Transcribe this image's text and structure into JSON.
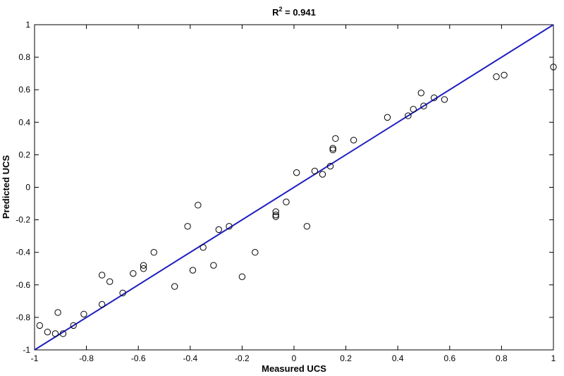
{
  "chart_data": {
    "type": "scatter",
    "title": "R² = 0.941",
    "title_main": "R",
    "title_sup": "2",
    "title_rest": " = 0.941",
    "xlabel": "Measured UCS",
    "ylabel": "Predicted UCS",
    "xlim": [
      -1,
      1
    ],
    "ylim": [
      -1,
      1
    ],
    "x_ticks": [
      -1,
      -0.8,
      -0.6,
      -0.4,
      -0.2,
      0,
      0.2,
      0.4,
      0.6,
      0.8,
      1
    ],
    "x_tick_labels": [
      "-1",
      "-0.8",
      "-0.6",
      "-0.4",
      "-0.2",
      "0",
      "0.2",
      "0.4",
      "0.6",
      "0.8",
      "1"
    ],
    "y_ticks": [
      -1,
      -0.8,
      -0.6,
      -0.4,
      -0.2,
      0,
      0.2,
      0.4,
      0.6,
      0.8,
      1
    ],
    "y_tick_labels": [
      "-1",
      "-0.8",
      "-0.6",
      "-0.4",
      "-0.2",
      "0",
      "0.2",
      "0.4",
      "0.6",
      "0.8",
      "1"
    ],
    "grid": false,
    "colors": {
      "line": "#1f1fbf",
      "marker": "#000000",
      "axes": "#000000"
    },
    "series": [
      {
        "type": "scatter",
        "marker": "open-circle",
        "points": [
          [
            -0.98,
            -0.85
          ],
          [
            -0.95,
            -0.89
          ],
          [
            -0.92,
            -0.9
          ],
          [
            -0.91,
            -0.77
          ],
          [
            -0.89,
            -0.9
          ],
          [
            -0.85,
            -0.85
          ],
          [
            -0.81,
            -0.78
          ],
          [
            -0.74,
            -0.72
          ],
          [
            -0.74,
            -0.54
          ],
          [
            -0.71,
            -0.58
          ],
          [
            -0.66,
            -0.65
          ],
          [
            -0.62,
            -0.53
          ],
          [
            -0.58,
            -0.48
          ],
          [
            -0.58,
            -0.5
          ],
          [
            -0.54,
            -0.4
          ],
          [
            -0.46,
            -0.61
          ],
          [
            -0.41,
            -0.24
          ],
          [
            -0.39,
            -0.51
          ],
          [
            -0.37,
            -0.11
          ],
          [
            -0.35,
            -0.37
          ],
          [
            -0.31,
            -0.48
          ],
          [
            -0.29,
            -0.26
          ],
          [
            -0.25,
            -0.24
          ],
          [
            -0.2,
            -0.55
          ],
          [
            -0.15,
            -0.4
          ],
          [
            -0.07,
            -0.15
          ],
          [
            -0.07,
            -0.17
          ],
          [
            -0.07,
            -0.18
          ],
          [
            -0.03,
            -0.09
          ],
          [
            0.01,
            0.09
          ],
          [
            0.05,
            -0.24
          ],
          [
            0.08,
            0.1
          ],
          [
            0.11,
            0.08
          ],
          [
            0.14,
            0.13
          ],
          [
            0.15,
            0.24
          ],
          [
            0.15,
            0.23
          ],
          [
            0.16,
            0.3
          ],
          [
            0.23,
            0.29
          ],
          [
            0.36,
            0.43
          ],
          [
            0.44,
            0.44
          ],
          [
            0.46,
            0.48
          ],
          [
            0.49,
            0.58
          ],
          [
            0.5,
            0.5
          ],
          [
            0.54,
            0.55
          ],
          [
            0.58,
            0.54
          ],
          [
            0.78,
            0.68
          ],
          [
            0.81,
            0.69
          ],
          [
            1.0,
            0.74
          ]
        ]
      },
      {
        "type": "line",
        "points": [
          [
            -1,
            -1
          ],
          [
            1,
            1
          ]
        ]
      }
    ]
  }
}
